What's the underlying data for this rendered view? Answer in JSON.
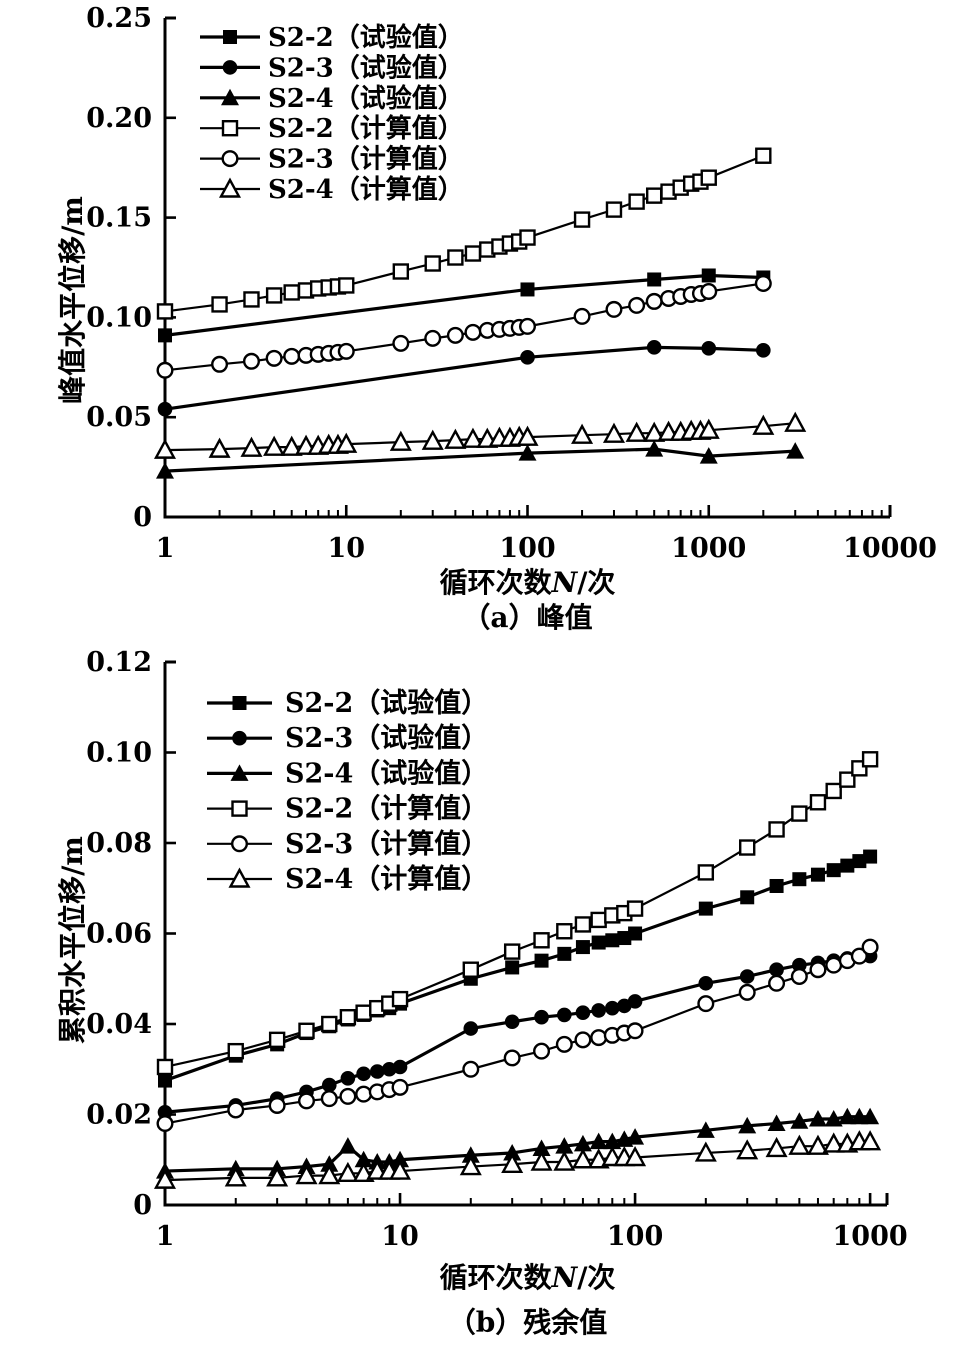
{
  "page": {
    "background": "#ffffff",
    "ink": "#000000"
  },
  "chart_data": [
    {
      "type": "line",
      "panel": "a",
      "caption": "（a）峰值",
      "xlabel": "循环次数N/次",
      "xlabel_pre": "循环次数",
      "xlabel_var": "N",
      "xlabel_post": "/次",
      "ylabel": "峰值水平位移/m",
      "xscale": "log",
      "xlim": [
        1,
        10000
      ],
      "ylim": [
        0,
        0.25
      ],
      "grid": false,
      "legend_position": "upper-left-inside",
      "xticks": [
        {
          "v": 1,
          "label": "1"
        },
        {
          "v": 10,
          "label": "10"
        },
        {
          "v": 100,
          "label": "100"
        },
        {
          "v": 1000,
          "label": "1000"
        },
        {
          "v": 10000,
          "label": "10000"
        }
      ],
      "yticks": [
        {
          "v": 0,
          "label": "0"
        },
        {
          "v": 0.05,
          "label": "0.05"
        },
        {
          "v": 0.1,
          "label": "0.10"
        },
        {
          "v": 0.15,
          "label": "0.15"
        },
        {
          "v": 0.2,
          "label": "0.20"
        },
        {
          "v": 0.25,
          "label": "0.25"
        }
      ],
      "series": [
        {
          "id": "a-s22-test",
          "name": "S2-2（试验值）",
          "marker": "square-filled",
          "line_width": 3.2,
          "x": [
            1,
            100,
            500,
            1000,
            2000
          ],
          "y": [
            0.091,
            0.114,
            0.119,
            0.121,
            0.12
          ]
        },
        {
          "id": "a-s23-test",
          "name": "S2-3（试验值）",
          "marker": "circle-filled",
          "line_width": 3.2,
          "x": [
            1,
            100,
            500,
            1000,
            2000
          ],
          "y": [
            0.054,
            0.08,
            0.085,
            0.0845,
            0.0835
          ]
        },
        {
          "id": "a-s24-test",
          "name": "S2-4（试验值）",
          "marker": "triangle-filled",
          "line_width": 3.2,
          "x": [
            1,
            100,
            500,
            1000,
            3000
          ],
          "y": [
            0.023,
            0.032,
            0.034,
            0.0305,
            0.033
          ]
        },
        {
          "id": "a-s22-calc",
          "name": "S2-2（计算值）",
          "marker": "square-open",
          "line_width": 2.2,
          "x": [
            1,
            2,
            3,
            4,
            5,
            6,
            7,
            8,
            9,
            10,
            20,
            30,
            40,
            50,
            60,
            70,
            80,
            90,
            100,
            200,
            300,
            400,
            500,
            600,
            700,
            800,
            900,
            1000,
            2000
          ],
          "y": [
            0.103,
            0.1065,
            0.109,
            0.111,
            0.1125,
            0.1135,
            0.1145,
            0.115,
            0.1155,
            0.116,
            0.123,
            0.127,
            0.13,
            0.132,
            0.134,
            0.1355,
            0.137,
            0.138,
            0.14,
            0.149,
            0.154,
            0.158,
            0.161,
            0.163,
            0.165,
            0.167,
            0.168,
            0.17,
            0.181
          ]
        },
        {
          "id": "a-s23-calc",
          "name": "S2-3（计算值）",
          "marker": "circle-open",
          "line_width": 2.2,
          "x": [
            1,
            2,
            3,
            4,
            5,
            6,
            7,
            8,
            9,
            10,
            20,
            30,
            40,
            50,
            60,
            70,
            80,
            90,
            100,
            200,
            300,
            400,
            500,
            600,
            700,
            800,
            900,
            1000,
            2000
          ],
          "y": [
            0.0735,
            0.0765,
            0.078,
            0.0795,
            0.0805,
            0.081,
            0.0815,
            0.082,
            0.0825,
            0.083,
            0.087,
            0.0895,
            0.091,
            0.0925,
            0.0935,
            0.094,
            0.0945,
            0.095,
            0.0955,
            0.1005,
            0.104,
            0.106,
            0.108,
            0.1095,
            0.1105,
            0.1115,
            0.112,
            0.113,
            0.117
          ]
        },
        {
          "id": "a-s24-calc",
          "name": "S2-4（计算值）",
          "marker": "triangle-open",
          "line_width": 2.2,
          "x": [
            1,
            2,
            3,
            4,
            5,
            6,
            7,
            8,
            9,
            10,
            20,
            30,
            40,
            50,
            60,
            70,
            80,
            90,
            100,
            200,
            300,
            400,
            500,
            600,
            700,
            800,
            900,
            1000,
            2000,
            3000
          ],
          "y": [
            0.0335,
            0.034,
            0.0345,
            0.035,
            0.035,
            0.0355,
            0.0355,
            0.036,
            0.036,
            0.0365,
            0.0375,
            0.038,
            0.0385,
            0.039,
            0.039,
            0.0395,
            0.0395,
            0.04,
            0.04,
            0.041,
            0.0415,
            0.042,
            0.042,
            0.0425,
            0.0425,
            0.043,
            0.043,
            0.0435,
            0.0455,
            0.047
          ]
        }
      ]
    },
    {
      "type": "line",
      "panel": "b",
      "caption": "（b）残余值",
      "xlabel": "循环次数N/次",
      "xlabel_pre": "循环次数",
      "xlabel_var": "N",
      "xlabel_post": "/次",
      "ylabel": "累积水平位移/m",
      "xscale": "log",
      "xlim": [
        1,
        1180
      ],
      "ylim": [
        0,
        0.12
      ],
      "grid": false,
      "legend_position": "upper-left-inside",
      "xticks": [
        {
          "v": 1,
          "label": "1"
        },
        {
          "v": 10,
          "label": "10"
        },
        {
          "v": 100,
          "label": "100"
        },
        {
          "v": 1000,
          "label": "1000"
        }
      ],
      "yticks": [
        {
          "v": 0,
          "label": "0"
        },
        {
          "v": 0.02,
          "label": "0.02"
        },
        {
          "v": 0.04,
          "label": "0.04"
        },
        {
          "v": 0.06,
          "label": "0.06"
        },
        {
          "v": 0.08,
          "label": "0.08"
        },
        {
          "v": 0.1,
          "label": "0.10"
        },
        {
          "v": 0.12,
          "label": "0.12"
        }
      ],
      "series": [
        {
          "id": "b-s22-test",
          "name": "S2-2（试验值）",
          "marker": "square-filled",
          "line_width": 3.2,
          "x": [
            1,
            2,
            3,
            4,
            5,
            6,
            7,
            8,
            9,
            10,
            20,
            30,
            40,
            50,
            60,
            70,
            80,
            90,
            100,
            200,
            300,
            400,
            500,
            600,
            700,
            800,
            900,
            1000
          ],
          "y": [
            0.0275,
            0.033,
            0.0355,
            0.038,
            0.0395,
            0.041,
            0.042,
            0.043,
            0.0435,
            0.0445,
            0.05,
            0.0525,
            0.054,
            0.0555,
            0.057,
            0.058,
            0.0585,
            0.059,
            0.06,
            0.0655,
            0.068,
            0.0705,
            0.072,
            0.073,
            0.074,
            0.075,
            0.076,
            0.077
          ]
        },
        {
          "id": "b-s23-test",
          "name": "S2-3（试验值）",
          "marker": "circle-filled",
          "line_width": 3.2,
          "x": [
            1,
            2,
            3,
            4,
            5,
            6,
            7,
            8,
            9,
            10,
            20,
            30,
            40,
            50,
            60,
            70,
            80,
            90,
            100,
            200,
            300,
            400,
            500,
            600,
            700,
            800,
            900,
            1000
          ],
          "y": [
            0.0205,
            0.022,
            0.0235,
            0.025,
            0.0265,
            0.028,
            0.029,
            0.0295,
            0.03,
            0.0305,
            0.039,
            0.0405,
            0.0415,
            0.042,
            0.0425,
            0.043,
            0.0435,
            0.044,
            0.045,
            0.049,
            0.0505,
            0.052,
            0.053,
            0.0535,
            0.054,
            0.0545,
            0.055,
            0.055
          ]
        },
        {
          "id": "b-s24-test",
          "name": "S2-4（试验值）",
          "marker": "triangle-filled",
          "line_width": 3.2,
          "x": [
            1,
            2,
            3,
            4,
            5,
            6,
            7,
            8,
            9,
            10,
            20,
            30,
            40,
            50,
            60,
            70,
            80,
            90,
            100,
            200,
            300,
            400,
            500,
            600,
            700,
            800,
            900,
            1000
          ],
          "y": [
            0.0075,
            0.008,
            0.008,
            0.0085,
            0.009,
            0.013,
            0.01,
            0.0095,
            0.0095,
            0.01,
            0.011,
            0.0115,
            0.0125,
            0.013,
            0.0135,
            0.014,
            0.014,
            0.0145,
            0.015,
            0.0165,
            0.0175,
            0.018,
            0.0185,
            0.019,
            0.019,
            0.0195,
            0.0195,
            0.0195
          ]
        },
        {
          "id": "b-s22-calc",
          "name": "S2-2（计算值）",
          "marker": "square-open",
          "line_width": 2.2,
          "x": [
            1,
            2,
            3,
            4,
            5,
            6,
            7,
            8,
            9,
            10,
            20,
            30,
            40,
            50,
            60,
            70,
            80,
            90,
            100,
            200,
            300,
            400,
            500,
            600,
            700,
            800,
            900,
            1000
          ],
          "y": [
            0.0305,
            0.034,
            0.0365,
            0.0385,
            0.04,
            0.0415,
            0.0425,
            0.0435,
            0.0445,
            0.0455,
            0.052,
            0.056,
            0.0585,
            0.0605,
            0.062,
            0.063,
            0.064,
            0.0645,
            0.0655,
            0.0735,
            0.079,
            0.083,
            0.0865,
            0.089,
            0.0915,
            0.094,
            0.0965,
            0.0985
          ]
        },
        {
          "id": "b-s23-calc",
          "name": "S2-3（计算值）",
          "marker": "circle-open",
          "line_width": 2.2,
          "x": [
            1,
            2,
            3,
            4,
            5,
            6,
            7,
            8,
            9,
            10,
            20,
            30,
            40,
            50,
            60,
            70,
            80,
            90,
            100,
            200,
            300,
            400,
            500,
            600,
            700,
            800,
            900,
            1000
          ],
          "y": [
            0.018,
            0.021,
            0.022,
            0.023,
            0.0235,
            0.024,
            0.0245,
            0.025,
            0.0255,
            0.026,
            0.03,
            0.0325,
            0.034,
            0.0355,
            0.0365,
            0.037,
            0.0375,
            0.038,
            0.0385,
            0.0445,
            0.047,
            0.049,
            0.0505,
            0.052,
            0.053,
            0.054,
            0.055,
            0.057
          ]
        },
        {
          "id": "b-s24-calc",
          "name": "S2-4（计算值）",
          "marker": "triangle-open",
          "line_width": 2.2,
          "x": [
            1,
            2,
            3,
            4,
            5,
            6,
            7,
            8,
            9,
            10,
            20,
            30,
            40,
            50,
            60,
            70,
            80,
            90,
            100,
            200,
            300,
            400,
            500,
            600,
            700,
            800,
            900,
            1000
          ],
          "y": [
            0.0055,
            0.006,
            0.006,
            0.0065,
            0.0065,
            0.007,
            0.007,
            0.0075,
            0.0075,
            0.0075,
            0.0085,
            0.009,
            0.0095,
            0.0095,
            0.01,
            0.01,
            0.0105,
            0.0105,
            0.0105,
            0.0115,
            0.012,
            0.0125,
            0.013,
            0.013,
            0.0135,
            0.0135,
            0.014,
            0.014
          ]
        }
      ]
    }
  ]
}
